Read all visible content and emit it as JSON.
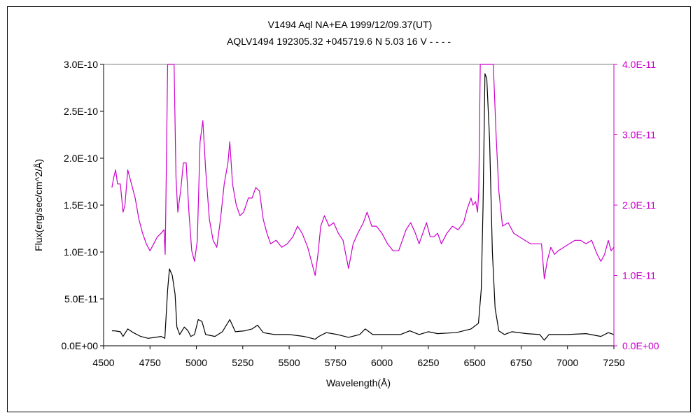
{
  "chart_data": {
    "type": "line",
    "title": "V1494 Aql    NA+EA    1999/12/09.37(UT)",
    "subtitle": "AQLV1494 192305.32 +045719.6 N 5.03 16 V - - - -",
    "xlabel": "Wavelength(Å)",
    "ylabel": "Flux(erg/sec/cm^2/Å)",
    "xlim": [
      4500,
      7250
    ],
    "ylim": [
      0,
      3e-10
    ],
    "y2lim": [
      0,
      4e-11
    ],
    "x_ticks": [
      "4500",
      "4750",
      "5000",
      "5250",
      "5500",
      "5750",
      "6000",
      "6250",
      "6500",
      "6750",
      "7000",
      "7250"
    ],
    "y_ticks": [
      "0.0E+00",
      "5.0E-11",
      "1.0E-10",
      "1.5E-10",
      "2.0E-10",
      "2.5E-10",
      "3.0E-10"
    ],
    "y2_ticks": [
      "0.0E+00",
      "1.0E-11",
      "2.0E-11",
      "3.0E-11",
      "4.0E-11"
    ],
    "grid": false,
    "colors": {
      "primary": "#000000",
      "secondary": "#cc00cc"
    },
    "series": [
      {
        "axis": "left",
        "color": "#000000",
        "points": [
          [
            4545,
            1.6e-11
          ],
          [
            4560,
            1.6e-11
          ],
          [
            4590,
            1.5e-11
          ],
          [
            4605,
            1e-11
          ],
          [
            4630,
            1.8e-11
          ],
          [
            4660,
            1.4e-11
          ],
          [
            4700,
            1e-11
          ],
          [
            4740,
            8e-12
          ],
          [
            4780,
            9e-12
          ],
          [
            4810,
            1e-11
          ],
          [
            4830,
            8e-12
          ],
          [
            4845,
            6e-11
          ],
          [
            4855,
            8.2e-11
          ],
          [
            4870,
            7.5e-11
          ],
          [
            4885,
            5.5e-11
          ],
          [
            4895,
            2e-11
          ],
          [
            4910,
            1.2e-11
          ],
          [
            4935,
            2e-11
          ],
          [
            4955,
            1.6e-11
          ],
          [
            4970,
            1e-11
          ],
          [
            4990,
            1.2e-11
          ],
          [
            5010,
            2.8e-11
          ],
          [
            5030,
            2.6e-11
          ],
          [
            5050,
            1.2e-11
          ],
          [
            5100,
            1e-11
          ],
          [
            5140,
            1.5e-11
          ],
          [
            5180,
            2.8e-11
          ],
          [
            5210,
            1.5e-11
          ],
          [
            5260,
            1.6e-11
          ],
          [
            5300,
            1.8e-11
          ],
          [
            5330,
            2.2e-11
          ],
          [
            5360,
            1.4e-11
          ],
          [
            5420,
            1.2e-11
          ],
          [
            5500,
            1.2e-11
          ],
          [
            5580,
            1e-11
          ],
          [
            5640,
            7e-12
          ],
          [
            5660,
            1e-11
          ],
          [
            5700,
            1.4e-11
          ],
          [
            5760,
            1.2e-11
          ],
          [
            5820,
            9e-12
          ],
          [
            5880,
            1.2e-11
          ],
          [
            5910,
            1.8e-11
          ],
          [
            5950,
            1.2e-11
          ],
          [
            6000,
            1.2e-11
          ],
          [
            6100,
            1.2e-11
          ],
          [
            6150,
            1.6e-11
          ],
          [
            6200,
            1.2e-11
          ],
          [
            6250,
            1.5e-11
          ],
          [
            6300,
            1.3e-11
          ],
          [
            6400,
            1.4e-11
          ],
          [
            6480,
            1.8e-11
          ],
          [
            6520,
            2.4e-11
          ],
          [
            6535,
            6e-11
          ],
          [
            6545,
            1.5e-10
          ],
          [
            6555,
            2.9e-10
          ],
          [
            6565,
            2.85e-10
          ],
          [
            6580,
            2.2e-10
          ],
          [
            6595,
            1e-10
          ],
          [
            6610,
            4e-11
          ],
          [
            6630,
            1.6e-11
          ],
          [
            6660,
            1.2e-11
          ],
          [
            6700,
            1.5e-11
          ],
          [
            6780,
            1.3e-11
          ],
          [
            6850,
            1.2e-11
          ],
          [
            6875,
            6e-12
          ],
          [
            6900,
            1.2e-11
          ],
          [
            7000,
            1.2e-11
          ],
          [
            7100,
            1.3e-11
          ],
          [
            7180,
            1e-11
          ],
          [
            7220,
            1.4e-11
          ],
          [
            7250,
            1.2e-11
          ]
        ]
      },
      {
        "axis": "right",
        "color": "#cc00cc",
        "points": [
          [
            4545,
            2.25e-11
          ],
          [
            4555,
            2.4e-11
          ],
          [
            4565,
            2.5e-11
          ],
          [
            4575,
            2.3e-11
          ],
          [
            4590,
            2.3e-11
          ],
          [
            4605,
            1.9e-11
          ],
          [
            4615,
            2e-11
          ],
          [
            4630,
            2.5e-11
          ],
          [
            4650,
            2.3e-11
          ],
          [
            4670,
            2.1e-11
          ],
          [
            4690,
            1.8e-11
          ],
          [
            4710,
            1.6e-11
          ],
          [
            4730,
            1.45e-11
          ],
          [
            4750,
            1.35e-11
          ],
          [
            4770,
            1.45e-11
          ],
          [
            4790,
            1.55e-11
          ],
          [
            4810,
            1.6e-11
          ],
          [
            4825,
            1.65e-11
          ],
          [
            4832,
            1.3e-11
          ],
          [
            4838,
            2.5e-11
          ],
          [
            4845,
            4e-11
          ],
          [
            4865,
            4e-11
          ],
          [
            4880,
            4e-11
          ],
          [
            4890,
            2.4e-11
          ],
          [
            4900,
            1.9e-11
          ],
          [
            4915,
            2.2e-11
          ],
          [
            4930,
            2.6e-11
          ],
          [
            4945,
            2.6e-11
          ],
          [
            4960,
            1.9e-11
          ],
          [
            4975,
            1.35e-11
          ],
          [
            4990,
            1.2e-11
          ],
          [
            5005,
            1.5e-11
          ],
          [
            5020,
            2.9e-11
          ],
          [
            5035,
            3.2e-11
          ],
          [
            5050,
            2.5e-11
          ],
          [
            5070,
            1.8e-11
          ],
          [
            5090,
            1.5e-11
          ],
          [
            5110,
            1.4e-11
          ],
          [
            5130,
            1.8e-11
          ],
          [
            5150,
            2.3e-11
          ],
          [
            5170,
            2.6e-11
          ],
          [
            5180,
            2.9e-11
          ],
          [
            5195,
            2.3e-11
          ],
          [
            5215,
            2e-11
          ],
          [
            5235,
            1.85e-11
          ],
          [
            5255,
            1.9e-11
          ],
          [
            5280,
            2.1e-11
          ],
          [
            5300,
            2.1e-11
          ],
          [
            5320,
            2.25e-11
          ],
          [
            5340,
            2.2e-11
          ],
          [
            5360,
            1.8e-11
          ],
          [
            5380,
            1.6e-11
          ],
          [
            5400,
            1.45e-11
          ],
          [
            5430,
            1.5e-11
          ],
          [
            5460,
            1.4e-11
          ],
          [
            5490,
            1.45e-11
          ],
          [
            5520,
            1.55e-11
          ],
          [
            5545,
            1.7e-11
          ],
          [
            5570,
            1.6e-11
          ],
          [
            5600,
            1.4e-11
          ],
          [
            5620,
            1.2e-11
          ],
          [
            5640,
            1e-11
          ],
          [
            5655,
            1.3e-11
          ],
          [
            5670,
            1.7e-11
          ],
          [
            5690,
            1.85e-11
          ],
          [
            5715,
            1.7e-11
          ],
          [
            5740,
            1.75e-11
          ],
          [
            5765,
            1.6e-11
          ],
          [
            5790,
            1.5e-11
          ],
          [
            5820,
            1.1e-11
          ],
          [
            5845,
            1.45e-11
          ],
          [
            5870,
            1.6e-11
          ],
          [
            5900,
            1.75e-11
          ],
          [
            5920,
            1.9e-11
          ],
          [
            5945,
            1.7e-11
          ],
          [
            5970,
            1.7e-11
          ],
          [
            6000,
            1.6e-11
          ],
          [
            6030,
            1.45e-11
          ],
          [
            6060,
            1.35e-11
          ],
          [
            6090,
            1.35e-11
          ],
          [
            6110,
            1.5e-11
          ],
          [
            6130,
            1.65e-11
          ],
          [
            6155,
            1.75e-11
          ],
          [
            6180,
            1.6e-11
          ],
          [
            6200,
            1.45e-11
          ],
          [
            6220,
            1.6e-11
          ],
          [
            6240,
            1.75e-11
          ],
          [
            6260,
            1.55e-11
          ],
          [
            6280,
            1.55e-11
          ],
          [
            6300,
            1.6e-11
          ],
          [
            6320,
            1.45e-11
          ],
          [
            6350,
            1.6e-11
          ],
          [
            6380,
            1.7e-11
          ],
          [
            6410,
            1.65e-11
          ],
          [
            6440,
            1.75e-11
          ],
          [
            6460,
            1.95e-11
          ],
          [
            6480,
            2.1e-11
          ],
          [
            6490,
            2e-11
          ],
          [
            6505,
            2.05e-11
          ],
          [
            6515,
            1.9e-11
          ],
          [
            6522,
            2.2e-11
          ],
          [
            6530,
            4e-11
          ],
          [
            6600,
            4e-11
          ],
          [
            6615,
            3e-11
          ],
          [
            6630,
            2.2e-11
          ],
          [
            6650,
            1.7e-11
          ],
          [
            6680,
            1.75e-11
          ],
          [
            6710,
            1.6e-11
          ],
          [
            6740,
            1.55e-11
          ],
          [
            6770,
            1.5e-11
          ],
          [
            6800,
            1.45e-11
          ],
          [
            6840,
            1.45e-11
          ],
          [
            6860,
            1.45e-11
          ],
          [
            6875,
            9.5e-12
          ],
          [
            6890,
            1.2e-11
          ],
          [
            6910,
            1.4e-11
          ],
          [
            6930,
            1.3e-11
          ],
          [
            6950,
            1.35e-11
          ],
          [
            6980,
            1.4e-11
          ],
          [
            7010,
            1.45e-11
          ],
          [
            7040,
            1.5e-11
          ],
          [
            7070,
            1.5e-11
          ],
          [
            7100,
            1.45e-11
          ],
          [
            7130,
            1.5e-11
          ],
          [
            7160,
            1.3e-11
          ],
          [
            7180,
            1.2e-11
          ],
          [
            7200,
            1.3e-11
          ],
          [
            7220,
            1.5e-11
          ],
          [
            7235,
            1.35e-11
          ],
          [
            7250,
            1.4e-11
          ]
        ]
      }
    ]
  }
}
